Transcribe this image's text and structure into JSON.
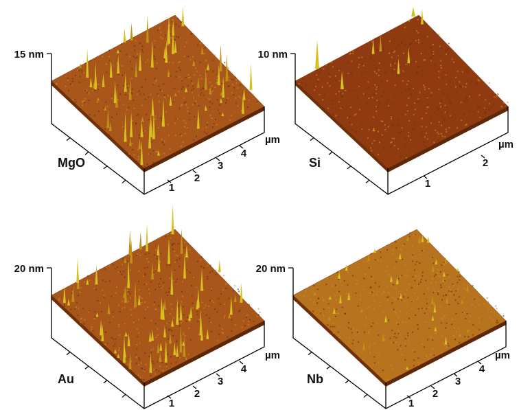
{
  "panels": [
    {
      "material": "MgO",
      "z_label": "15 nm",
      "x_ticks": [
        "1",
        "2",
        "3",
        "4"
      ],
      "unit": "µm"
    },
    {
      "material": "Si",
      "z_label": "10 nm",
      "x_ticks": [
        "1",
        "2"
      ],
      "unit": "µm"
    },
    {
      "material": "Au",
      "z_label": "20 nm",
      "x_ticks": [
        "1",
        "2",
        "3",
        "4"
      ],
      "unit": "µm"
    },
    {
      "material": "Nb",
      "z_label": "20 nm",
      "x_ticks": [
        "1",
        "2",
        "3",
        "4"
      ],
      "unit": "µm"
    }
  ]
}
